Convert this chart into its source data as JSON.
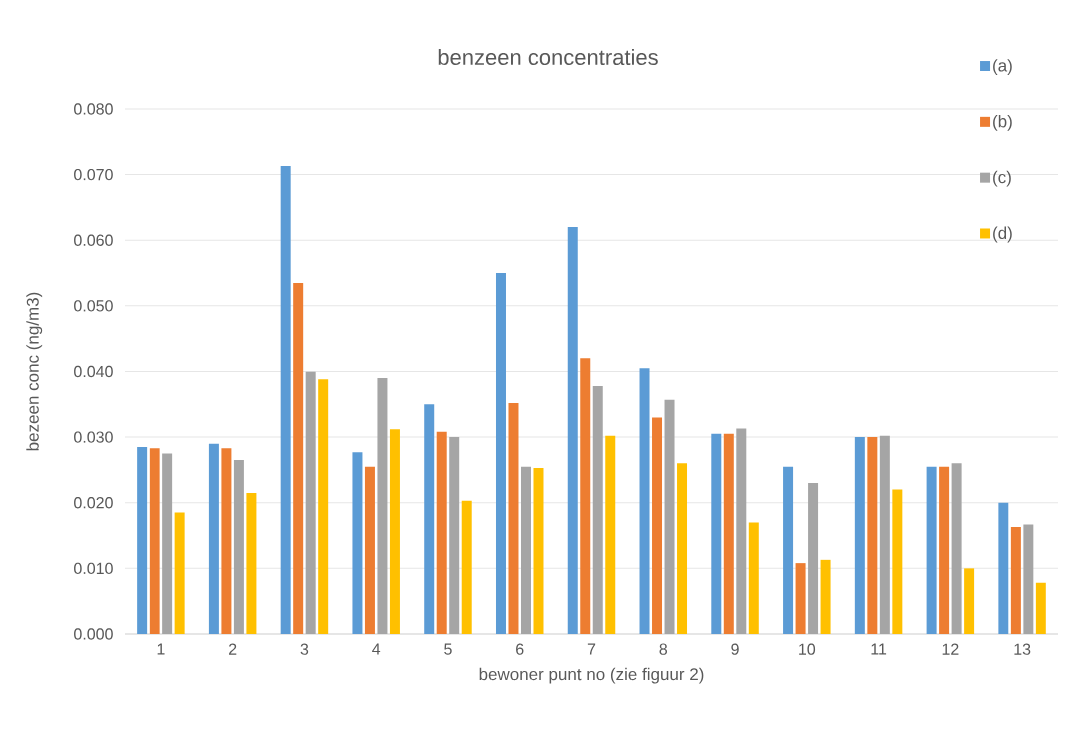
{
  "chart_data": {
    "type": "bar",
    "title": "benzeen  concentraties",
    "xlabel": "bewoner punt no (zie figuur 2)",
    "ylabel": "bezeen conc (ng/m3)",
    "categories": [
      "1",
      "2",
      "3",
      "4",
      "5",
      "6",
      "7",
      "8",
      "9",
      "10",
      "11",
      "12",
      "13"
    ],
    "series": [
      {
        "name": "(a)",
        "color": "#5b9bd5",
        "values": [
          0.0285,
          0.029,
          0.0713,
          0.0277,
          0.035,
          0.055,
          0.062,
          0.0405,
          0.0305,
          0.0255,
          0.03,
          0.0255,
          0.02
        ]
      },
      {
        "name": "(b)",
        "color": "#ed7d31",
        "values": [
          0.0283,
          0.0283,
          0.0535,
          0.0255,
          0.0308,
          0.0352,
          0.042,
          0.033,
          0.0305,
          0.0108,
          0.03,
          0.0255,
          0.0163
        ]
      },
      {
        "name": "(c)",
        "color": "#a5a5a5",
        "values": [
          0.0275,
          0.0265,
          0.04,
          0.039,
          0.03,
          0.0255,
          0.0378,
          0.0357,
          0.0313,
          0.023,
          0.0302,
          0.026,
          0.0167
        ]
      },
      {
        "name": "(d)",
        "color": "#ffc000",
        "values": [
          0.0185,
          0.0215,
          0.0388,
          0.0312,
          0.0203,
          0.0253,
          0.0302,
          0.026,
          0.017,
          0.0113,
          0.022,
          0.01,
          0.0078
        ]
      }
    ],
    "ylim": [
      0,
      0.08
    ],
    "yticks": [
      {
        "value": 0,
        "label": "0.000"
      },
      {
        "value": 0.01,
        "label": "0.010"
      },
      {
        "value": 0.02,
        "label": "0.020"
      },
      {
        "value": 0.03,
        "label": "0.030"
      },
      {
        "value": 0.04,
        "label": "0.040"
      },
      {
        "value": 0.05,
        "label": "0.050"
      },
      {
        "value": 0.06,
        "label": "0.060"
      },
      {
        "value": 0.07,
        "label": "0.070"
      },
      {
        "value": 0.08,
        "label": "0.080"
      }
    ],
    "grid": "y",
    "legend": "top right"
  }
}
